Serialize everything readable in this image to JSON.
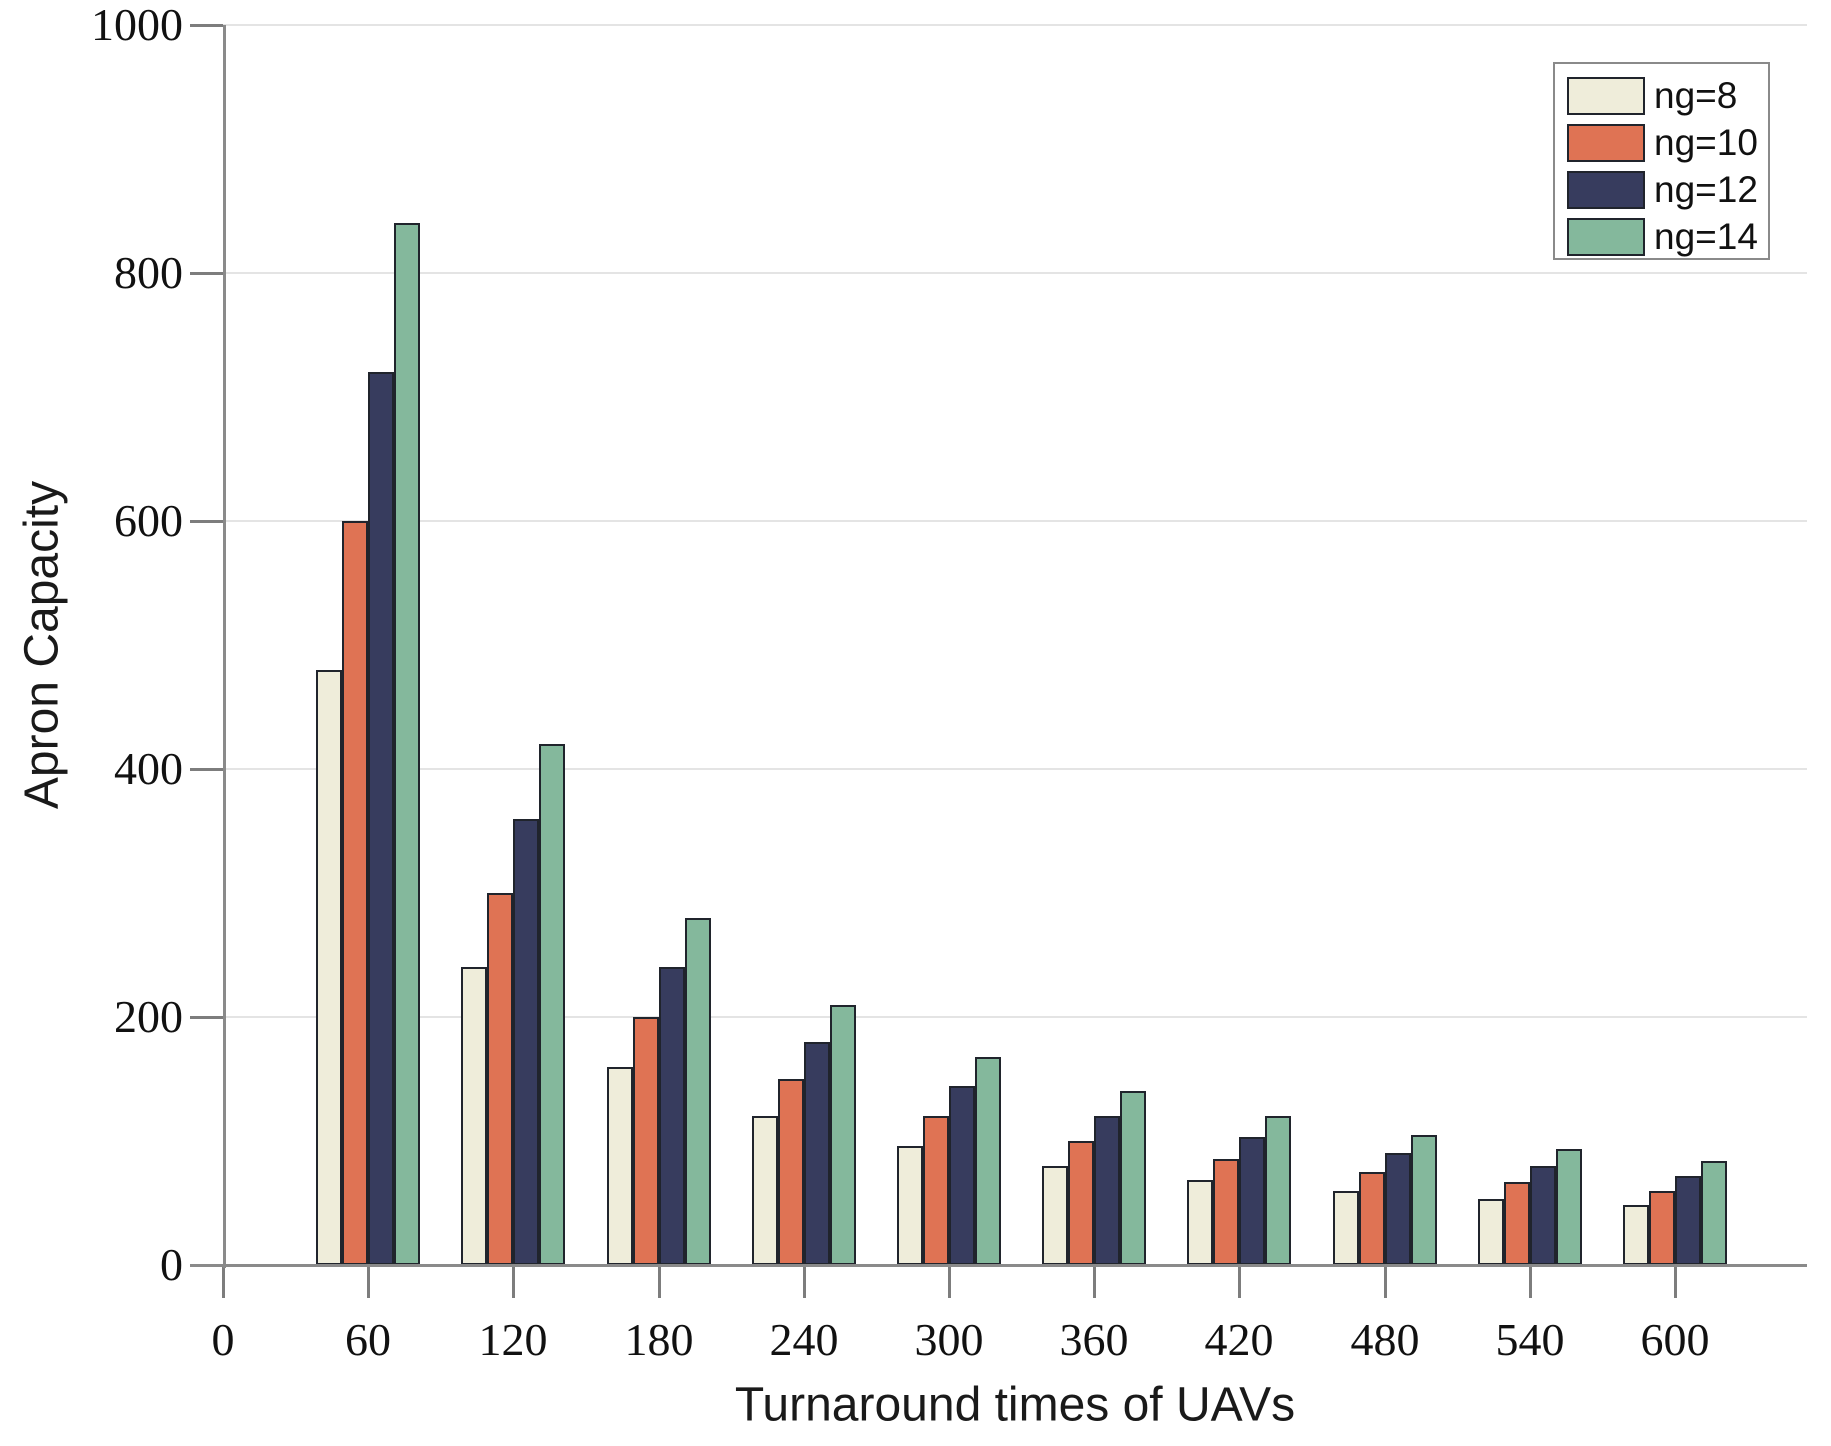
{
  "chart_data": {
    "type": "bar",
    "title": "",
    "xlabel": "Turnaround times of UAVs",
    "ylabel": "Apron Capacity",
    "categories": [
      60,
      120,
      180,
      240,
      300,
      360,
      420,
      480,
      540,
      600
    ],
    "x_tick_labels": [
      "0",
      "60",
      "120",
      "180",
      "240",
      "300",
      "360",
      "420",
      "480",
      "540",
      "600"
    ],
    "y_tick_labels": [
      "0",
      "200",
      "400",
      "600",
      "800",
      "1000"
    ],
    "y_tick_values": [
      0,
      200,
      400,
      600,
      800,
      1000
    ],
    "ylim": [
      0,
      1000
    ],
    "grid": "horizontal",
    "legend_position": "top-right",
    "series": [
      {
        "name": "ng=8",
        "color": "#efedda",
        "values": [
          480,
          240,
          160,
          120,
          96,
          80,
          68.6,
          60,
          53.3,
          48
        ]
      },
      {
        "name": "ng=10",
        "color": "#df7354",
        "values": [
          600,
          300,
          200,
          150,
          120,
          100,
          85.7,
          75,
          66.7,
          60
        ]
      },
      {
        "name": "ng=12",
        "color": "#373c5e",
        "values": [
          720,
          360,
          240,
          180,
          144,
          120,
          102.9,
          90,
          80,
          72
        ]
      },
      {
        "name": "ng=14",
        "color": "#84b89c",
        "values": [
          840,
          420,
          280,
          210,
          168,
          140,
          120,
          105,
          93.3,
          84
        ]
      }
    ],
    "colors": {
      "bar_border": "#20242c",
      "axis": "#8a8a8a",
      "gridline": "#e4e4e4",
      "text": "#111111",
      "legend_border": "#8a8a8a",
      "background": "#ffffff"
    }
  }
}
